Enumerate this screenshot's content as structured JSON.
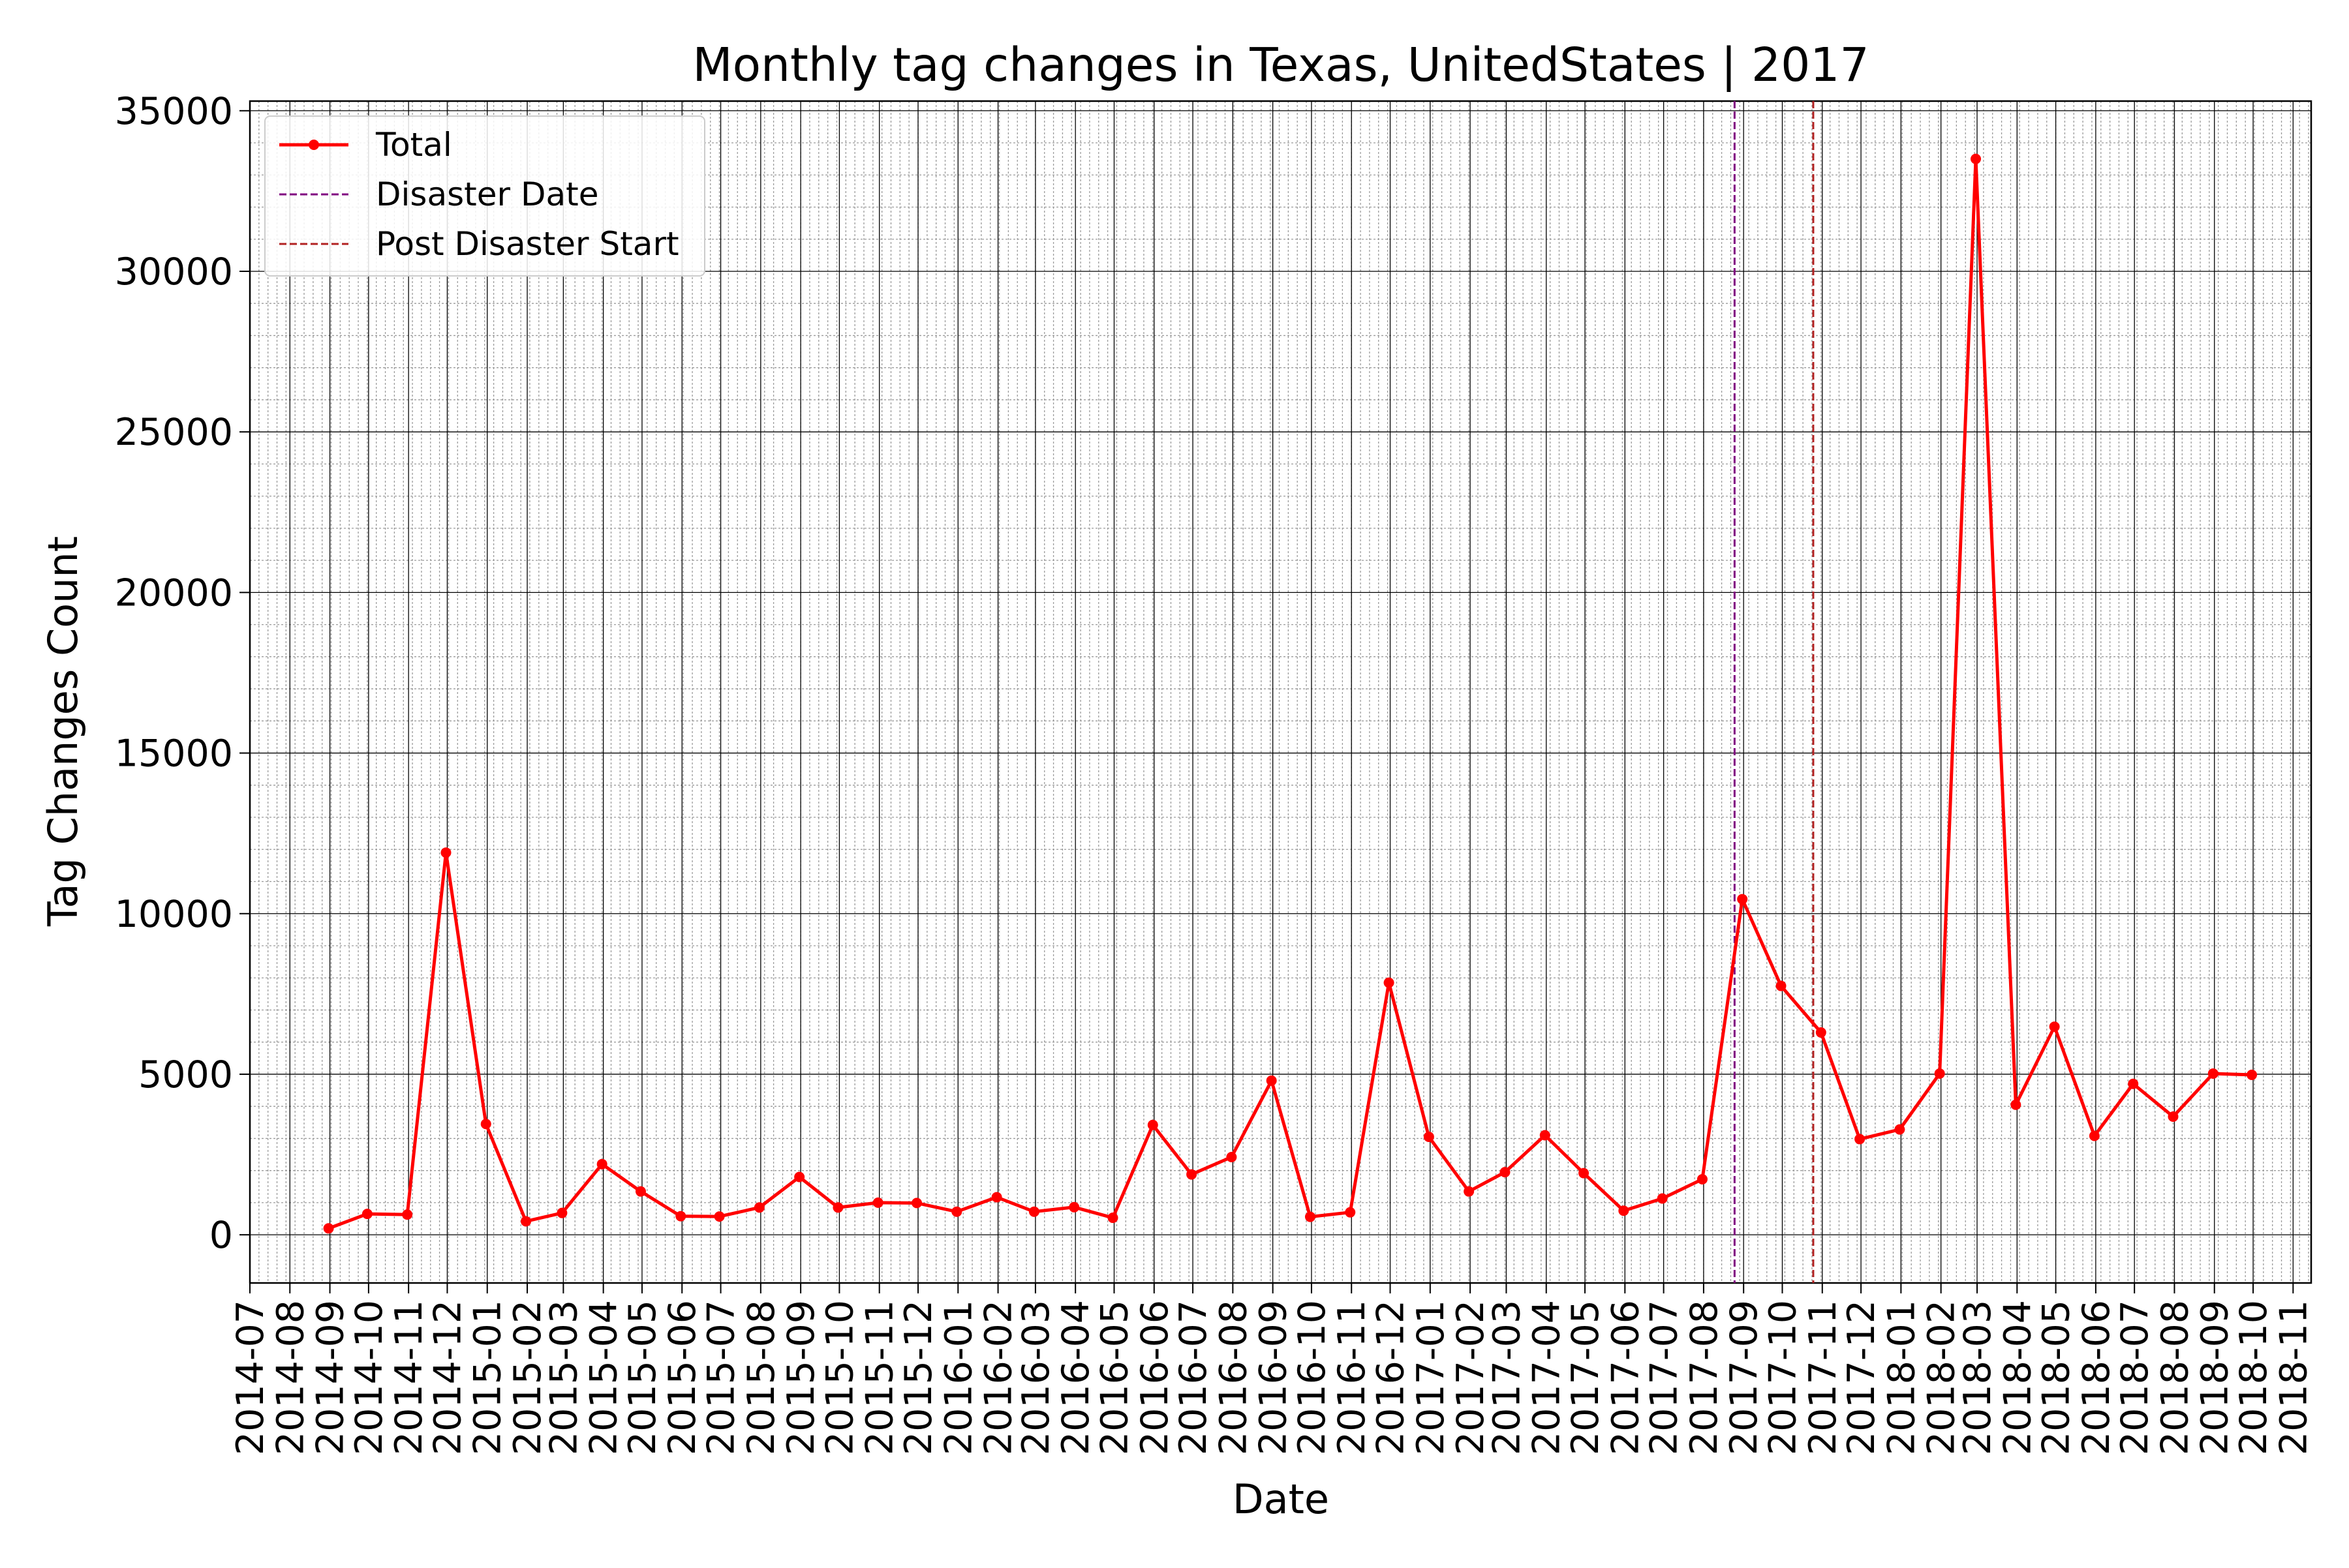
{
  "chart_data": {
    "type": "line",
    "title": "Monthly tag changes in Texas, UnitedStates | 2017",
    "xlabel": "Date",
    "ylabel": "Tag Changes Count",
    "ylim": [
      -1500,
      35300
    ],
    "yticks": [
      0,
      5000,
      10000,
      15000,
      20000,
      25000,
      30000,
      35000
    ],
    "xlim": [
      "2014-07-01",
      "2018-11-15"
    ],
    "x_tick_labels": [
      "2014-07",
      "2014-08",
      "2014-09",
      "2014-10",
      "2014-11",
      "2014-12",
      "2015-01",
      "2015-02",
      "2015-03",
      "2015-04",
      "2015-05",
      "2015-06",
      "2015-07",
      "2015-08",
      "2015-09",
      "2015-10",
      "2015-11",
      "2015-12",
      "2016-01",
      "2016-02",
      "2016-03",
      "2016-04",
      "2016-05",
      "2016-06",
      "2016-07",
      "2016-08",
      "2016-09",
      "2016-10",
      "2016-11",
      "2016-12",
      "2017-01",
      "2017-02",
      "2017-03",
      "2017-04",
      "2017-05",
      "2017-06",
      "2017-07",
      "2017-08",
      "2017-09",
      "2017-10",
      "2017-11",
      "2017-12",
      "2018-01",
      "2018-02",
      "2018-03",
      "2018-04",
      "2018-05",
      "2018-06",
      "2018-07",
      "2018-08",
      "2018-09",
      "2018-10",
      "2018-11"
    ],
    "grid": true,
    "legend_position": "top-left",
    "series": [
      {
        "name": "Total",
        "color": "#ff0000",
        "x": [
          "2014-08-31",
          "2014-09-30",
          "2014-10-31",
          "2014-11-30",
          "2014-12-31",
          "2015-01-31",
          "2015-02-28",
          "2015-03-31",
          "2015-04-30",
          "2015-05-31",
          "2015-06-30",
          "2015-07-31",
          "2015-08-31",
          "2015-09-30",
          "2015-10-31",
          "2015-11-30",
          "2015-12-31",
          "2016-01-31",
          "2016-02-29",
          "2016-03-31",
          "2016-04-30",
          "2016-05-31",
          "2016-06-30",
          "2016-07-31",
          "2016-08-31",
          "2016-09-30",
          "2016-10-31",
          "2016-11-30",
          "2016-12-31",
          "2017-01-31",
          "2017-02-28",
          "2017-03-31",
          "2017-04-30",
          "2017-05-31",
          "2017-06-30",
          "2017-07-31",
          "2017-08-31",
          "2017-09-30",
          "2017-10-31",
          "2017-11-30",
          "2017-12-31",
          "2018-01-31",
          "2018-02-28",
          "2018-03-31",
          "2018-04-30",
          "2018-05-31",
          "2018-06-30",
          "2018-07-31",
          "2018-08-31",
          "2018-09-30"
        ],
        "values": [
          200,
          650,
          630,
          11900,
          3450,
          420,
          680,
          2200,
          1350,
          580,
          570,
          850,
          1800,
          850,
          1000,
          990,
          720,
          1170,
          720,
          860,
          530,
          3420,
          1880,
          2420,
          4800,
          560,
          700,
          7850,
          3050,
          1350,
          1950,
          3100,
          1920,
          750,
          1130,
          1730,
          10450,
          7750,
          6300,
          2980,
          3280,
          5020,
          33500,
          4050,
          6480,
          3080,
          4700,
          3680,
          5020,
          4980
        ]
      }
    ],
    "vlines": [
      {
        "name": "Disaster Date",
        "x": "2017-08-25",
        "color": "#800080"
      },
      {
        "name": "Post Disaster Start",
        "x": "2017-10-25",
        "color": "#b22222"
      }
    ]
  }
}
